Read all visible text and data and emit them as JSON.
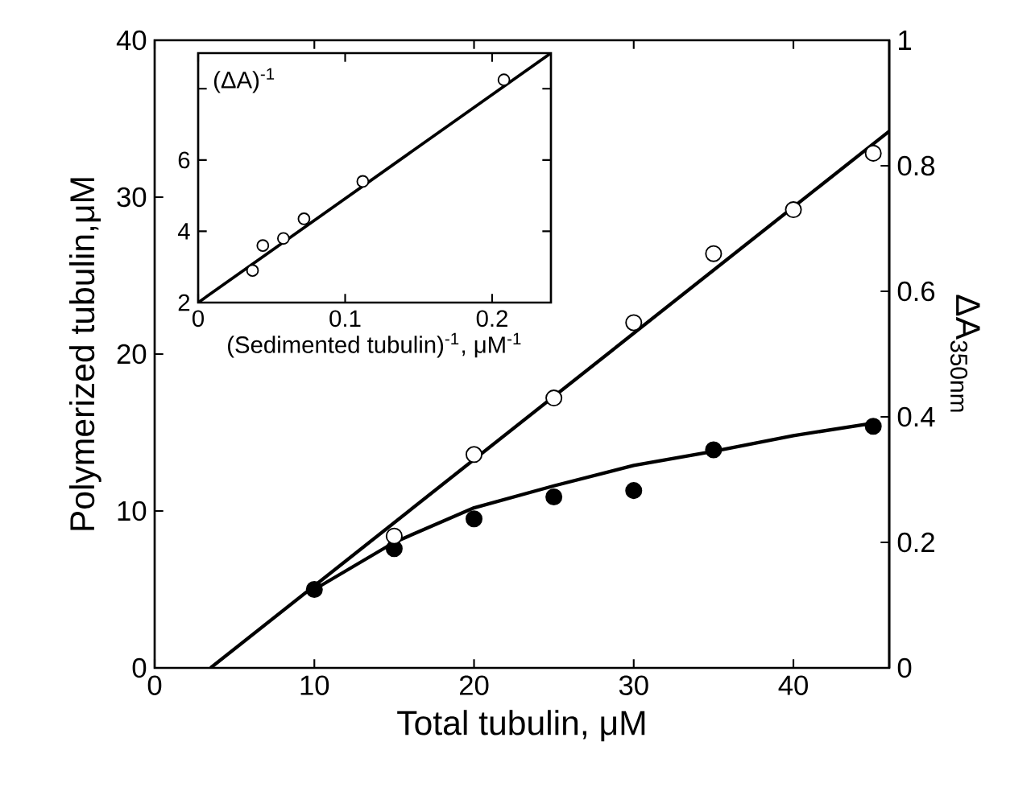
{
  "chart_data": [
    {
      "type": "scatter",
      "xlabel": "Total tubulin, μM",
      "ylabel": "Polymerized tubulin,μM",
      "y2label": "ΔA$_{350nm}$",
      "xlim": [
        0,
        46
      ],
      "xticks": [
        0,
        10,
        20,
        30,
        40
      ],
      "ylim": [
        0,
        40
      ],
      "yticks": [
        0,
        10,
        20,
        30,
        40
      ],
      "y2lim": [
        0,
        1
      ],
      "y2ticks": [
        0,
        0.2,
        0.4,
        0.6,
        0.8,
        1
      ],
      "series": [
        {
          "type": "line",
          "marker": "none",
          "color": "#000000",
          "x": [
            3.5,
            46
          ],
          "values": [
            0,
            34.2
          ]
        },
        {
          "type": "line",
          "marker": "none",
          "color": "#000000",
          "x": [
            10,
            15,
            20,
            25,
            30,
            35,
            40,
            45
          ],
          "values": [
            5.0,
            8.0,
            10.2,
            11.6,
            12.9,
            13.8,
            14.8,
            15.6
          ]
        },
        {
          "marker": "circle",
          "axis": "y2",
          "color": "#ffffff",
          "x": [
            15,
            20,
            25,
            30,
            35,
            40,
            45
          ],
          "values": [
            0.21,
            0.34,
            0.43,
            0.55,
            0.66,
            0.73,
            0.82
          ]
        },
        {
          "marker": "circle",
          "color": "#000000",
          "x": [
            10,
            15,
            20,
            25,
            30,
            35,
            45
          ],
          "values": [
            5.0,
            7.6,
            9.5,
            10.9,
            11.3,
            13.9,
            15.4
          ]
        }
      ]
    },
    {
      "type": "scatter",
      "xlabel": "(Sedimented tubulin)$^{-1}$, μM$^{-1}$",
      "ylabel": "(ΔA)$^{-1}$",
      "xlim": [
        0,
        0.24
      ],
      "xticks": [
        0,
        0.1,
        0.2
      ],
      "ylim": [
        2,
        9
      ],
      "yticks": [
        2,
        4,
        6,
        {
          "value": 8,
          "label": null
        }
      ],
      "series": [
        {
          "type": "line",
          "marker": "none",
          "color": "#000000",
          "x": [
            0,
            0.24
          ],
          "values": [
            2.0,
            9.0
          ]
        },
        {
          "marker": "circle",
          "color": "#ffffff",
          "x": [
            0.037,
            0.044,
            0.058,
            0.072,
            0.112,
            0.208
          ],
          "values": [
            2.9,
            3.6,
            3.8,
            4.35,
            5.4,
            8.25
          ]
        }
      ]
    }
  ]
}
